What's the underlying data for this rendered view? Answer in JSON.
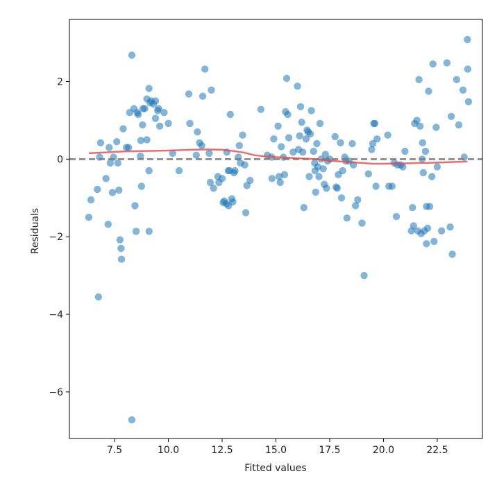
{
  "chart_data": {
    "type": "scatter",
    "title": "",
    "xlabel": "Fitted values",
    "ylabel": "Residuals",
    "xlim": [
      5.4,
      24.6
    ],
    "ylim": [
      -7.2,
      3.6
    ],
    "xticks": [
      7.5,
      10.0,
      12.5,
      15.0,
      17.5,
      20.0,
      22.5
    ],
    "xtick_labels": [
      "7.5",
      "10.0",
      "12.5",
      "15.0",
      "17.5",
      "20.0",
      "22.5"
    ],
    "yticks": [
      -6,
      -4,
      -2,
      0,
      2
    ],
    "ytick_labels": [
      "−6",
      "−4",
      "−2",
      "0",
      "2"
    ],
    "grid": false,
    "colors": {
      "points": "#1f77b4",
      "lowess": "#e8474b",
      "reference": "#808080"
    },
    "reference_line": {
      "y": 0,
      "style": "dashed"
    },
    "series": [
      {
        "values": [
          [
            6.3,
            -1.5
          ],
          [
            6.4,
            -1.05
          ],
          [
            6.7,
            -0.78
          ],
          [
            6.75,
            -3.55
          ],
          [
            6.8,
            0.05
          ],
          [
            6.85,
            0.42
          ],
          [
            7.1,
            -0.5
          ],
          [
            7.2,
            -1.68
          ],
          [
            7.25,
            0.3
          ],
          [
            7.3,
            -0.1
          ],
          [
            7.4,
            -0.86
          ],
          [
            7.45,
            0.05
          ],
          [
            7.6,
            0.45
          ],
          [
            7.65,
            -0.1
          ],
          [
            7.7,
            -0.8
          ],
          [
            7.75,
            -2.08
          ],
          [
            7.8,
            -2.3
          ],
          [
            7.82,
            -2.58
          ],
          [
            7.9,
            0.78
          ],
          [
            8.05,
            0.3
          ],
          [
            8.15,
            0.3
          ],
          [
            8.2,
            1.2
          ],
          [
            8.3,
            2.68
          ],
          [
            8.3,
            -6.72
          ],
          [
            8.4,
            1.3
          ],
          [
            8.45,
            -1.2
          ],
          [
            8.5,
            -1.86
          ],
          [
            8.55,
            1.2
          ],
          [
            8.6,
            1.15
          ],
          [
            8.7,
            0.08
          ],
          [
            8.72,
            0.48
          ],
          [
            8.75,
            -0.7
          ],
          [
            8.8,
            0.88
          ],
          [
            8.82,
            1.3
          ],
          [
            8.9,
            1.3
          ],
          [
            9.0,
            0.5
          ],
          [
            9.0,
            1.55
          ],
          [
            9.1,
            -0.3
          ],
          [
            9.1,
            -1.86
          ],
          [
            9.1,
            1.82
          ],
          [
            9.15,
            1.45
          ],
          [
            9.2,
            1.5
          ],
          [
            9.3,
            1.42
          ],
          [
            9.4,
            1.5
          ],
          [
            9.4,
            1.05
          ],
          [
            9.5,
            1.25
          ],
          [
            9.55,
            1.3
          ],
          [
            9.6,
            0.85
          ],
          [
            9.8,
            1.2
          ],
          [
            10.0,
            0.92
          ],
          [
            10.2,
            0.15
          ],
          [
            10.5,
            -0.3
          ],
          [
            10.95,
            1.68
          ],
          [
            11.0,
            0.92
          ],
          [
            11.3,
            0.1
          ],
          [
            11.35,
            0.7
          ],
          [
            11.45,
            0.42
          ],
          [
            11.55,
            0.35
          ],
          [
            11.6,
            1.62
          ],
          [
            11.7,
            2.32
          ],
          [
            11.9,
            0.15
          ],
          [
            11.95,
            -0.6
          ],
          [
            12.0,
            1.78
          ],
          [
            12.1,
            -0.75
          ],
          [
            12.3,
            -0.45
          ],
          [
            12.35,
            -0.6
          ],
          [
            12.5,
            -0.5
          ],
          [
            12.55,
            -1.12
          ],
          [
            12.6,
            -1.08
          ],
          [
            12.7,
            -1.15
          ],
          [
            12.72,
            0.18
          ],
          [
            12.78,
            -0.3
          ],
          [
            12.8,
            -1.2
          ],
          [
            12.85,
            -0.3
          ],
          [
            12.88,
            1.15
          ],
          [
            12.95,
            -1.02
          ],
          [
            13.0,
            -1.1
          ],
          [
            13.05,
            -0.35
          ],
          [
            13.1,
            -0.3
          ],
          [
            13.25,
            0.05
          ],
          [
            13.3,
            0.35
          ],
          [
            13.35,
            -0.1
          ],
          [
            13.45,
            0.62
          ],
          [
            13.55,
            -0.15
          ],
          [
            13.6,
            -1.38
          ],
          [
            13.65,
            -0.68
          ],
          [
            13.8,
            -0.55
          ],
          [
            14.3,
            1.28
          ],
          [
            14.6,
            0.1
          ],
          [
            14.8,
            0.05
          ],
          [
            14.82,
            -0.5
          ],
          [
            14.9,
            0.52
          ],
          [
            15.1,
            0.85
          ],
          [
            15.15,
            -0.45
          ],
          [
            15.2,
            -0.6
          ],
          [
            15.25,
            0.32
          ],
          [
            15.35,
            0.05
          ],
          [
            15.4,
            -0.4
          ],
          [
            15.45,
            1.22
          ],
          [
            15.5,
            2.08
          ],
          [
            15.55,
            1.15
          ],
          [
            15.6,
            0.55
          ],
          [
            15.8,
            0.18
          ],
          [
            16.0,
            1.88
          ],
          [
            16.05,
            0.25
          ],
          [
            16.1,
            0.6
          ],
          [
            16.15,
            1.35
          ],
          [
            16.2,
            0.95
          ],
          [
            16.25,
            0.18
          ],
          [
            16.3,
            -1.25
          ],
          [
            16.4,
            0.52
          ],
          [
            16.45,
            0.75
          ],
          [
            16.5,
            0.7
          ],
          [
            16.55,
            -0.45
          ],
          [
            16.6,
            0.65
          ],
          [
            16.65,
            1.25
          ],
          [
            16.75,
            0.2
          ],
          [
            16.8,
            -0.1
          ],
          [
            16.82,
            -0.3
          ],
          [
            16.85,
            -0.85
          ],
          [
            16.9,
            0.4
          ],
          [
            16.95,
            -0.2
          ],
          [
            17.0,
            -0.45
          ],
          [
            17.05,
            0.92
          ],
          [
            17.1,
            0.0
          ],
          [
            17.2,
            -0.25
          ],
          [
            17.25,
            -0.65
          ],
          [
            17.3,
            0.12
          ],
          [
            17.35,
            -0.75
          ],
          [
            17.4,
            -0.05
          ],
          [
            17.5,
            0.0
          ],
          [
            17.75,
            0.58
          ],
          [
            17.8,
            -0.72
          ],
          [
            17.85,
            -0.75
          ],
          [
            17.9,
            -0.4
          ],
          [
            18.0,
            0.42
          ],
          [
            18.05,
            -1.0
          ],
          [
            18.1,
            -0.3
          ],
          [
            18.2,
            0.05
          ],
          [
            18.25,
            -0.05
          ],
          [
            18.3,
            -1.52
          ],
          [
            18.4,
            -0.05
          ],
          [
            18.55,
            0.4
          ],
          [
            18.6,
            -0.15
          ],
          [
            18.7,
            -1.2
          ],
          [
            18.8,
            -1.05
          ],
          [
            19.0,
            -1.65
          ],
          [
            19.1,
            -3.0
          ],
          [
            19.3,
            -0.38
          ],
          [
            19.45,
            0.25
          ],
          [
            19.5,
            0.4
          ],
          [
            19.55,
            0.92
          ],
          [
            19.6,
            0.92
          ],
          [
            19.65,
            -0.7
          ],
          [
            19.7,
            0.52
          ],
          [
            20.2,
            0.62
          ],
          [
            20.25,
            -0.7
          ],
          [
            20.4,
            -0.7
          ],
          [
            20.5,
            -0.1
          ],
          [
            20.6,
            -1.48
          ],
          [
            20.65,
            -0.15
          ],
          [
            20.8,
            -0.15
          ],
          [
            20.9,
            -0.2
          ],
          [
            21.0,
            0.2
          ],
          [
            21.3,
            -1.85
          ],
          [
            21.35,
            -1.25
          ],
          [
            21.4,
            -1.72
          ],
          [
            21.45,
            0.92
          ],
          [
            21.55,
            1.0
          ],
          [
            21.6,
            -1.85
          ],
          [
            21.65,
            2.05
          ],
          [
            21.7,
            0.85
          ],
          [
            21.75,
            -1.92
          ],
          [
            21.8,
            0.0
          ],
          [
            21.82,
            0.42
          ],
          [
            21.85,
            -0.35
          ],
          [
            21.9,
            -1.85
          ],
          [
            21.95,
            0.2
          ],
          [
            22.0,
            -2.18
          ],
          [
            22.0,
            -1.22
          ],
          [
            22.05,
            -1.78
          ],
          [
            22.1,
            1.75
          ],
          [
            22.15,
            -1.22
          ],
          [
            22.25,
            -0.45
          ],
          [
            22.3,
            2.45
          ],
          [
            22.35,
            -2.12
          ],
          [
            22.45,
            0.82
          ],
          [
            22.5,
            -0.2
          ],
          [
            22.7,
            -1.85
          ],
          [
            22.95,
            2.48
          ],
          [
            23.1,
            -1.75
          ],
          [
            23.15,
            1.1
          ],
          [
            23.2,
            -2.45
          ],
          [
            23.4,
            2.05
          ],
          [
            23.5,
            0.88
          ],
          [
            23.7,
            1.78
          ],
          [
            23.75,
            0.05
          ],
          [
            23.9,
            3.08
          ],
          [
            23.92,
            2.32
          ],
          [
            23.95,
            1.48
          ]
        ]
      },
      {
        "type": "line",
        "values": [
          [
            6.3,
            0.15
          ],
          [
            7.0,
            0.17
          ],
          [
            8.0,
            0.2
          ],
          [
            9.0,
            0.21
          ],
          [
            10.0,
            0.22
          ],
          [
            11.0,
            0.24
          ],
          [
            11.8,
            0.25
          ],
          [
            12.5,
            0.24
          ],
          [
            13.0,
            0.21
          ],
          [
            13.5,
            0.17
          ],
          [
            14.0,
            0.1
          ],
          [
            14.5,
            0.07
          ],
          [
            15.0,
            0.05
          ],
          [
            15.5,
            0.04
          ],
          [
            16.0,
            0.02
          ],
          [
            16.5,
            0.01
          ],
          [
            17.0,
            -0.01
          ],
          [
            17.5,
            -0.04
          ],
          [
            18.0,
            -0.06
          ],
          [
            18.5,
            -0.08
          ],
          [
            19.0,
            -0.1
          ],
          [
            19.5,
            -0.12
          ],
          [
            20.0,
            -0.12
          ],
          [
            20.5,
            -0.11
          ],
          [
            21.0,
            -0.11
          ],
          [
            21.5,
            -0.1
          ],
          [
            22.0,
            -0.1
          ],
          [
            22.5,
            -0.09
          ],
          [
            23.0,
            -0.08
          ],
          [
            23.5,
            -0.07
          ],
          [
            23.9,
            -0.06
          ]
        ]
      }
    ]
  }
}
